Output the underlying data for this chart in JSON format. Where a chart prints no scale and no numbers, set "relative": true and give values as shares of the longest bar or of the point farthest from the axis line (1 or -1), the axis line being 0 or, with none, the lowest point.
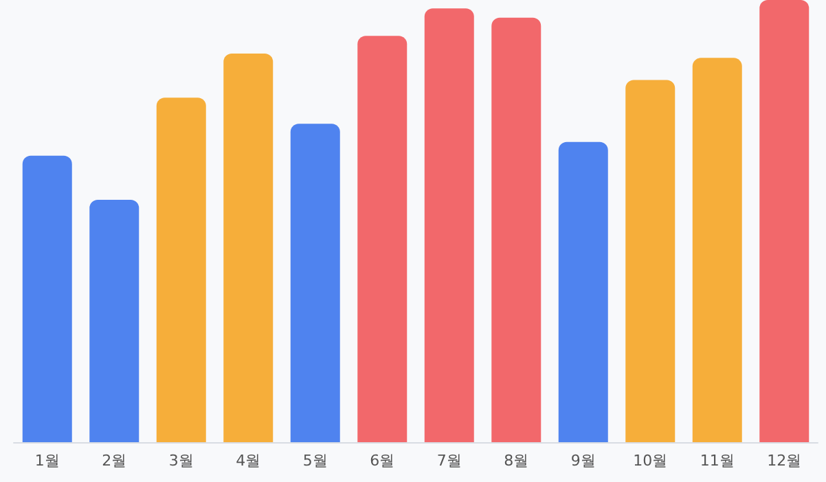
{
  "chart_data": {
    "type": "bar",
    "categories": [
      "1월",
      "2월",
      "3월",
      "4월",
      "5월",
      "6월",
      "7월",
      "8월",
      "9월",
      "10월",
      "11월",
      "12월"
    ],
    "values": [
      0.648,
      0.548,
      0.779,
      0.879,
      0.72,
      0.919,
      0.981,
      0.96,
      0.679,
      0.819,
      0.869,
      1
    ],
    "colors": [
      "#4f83ef",
      "#4f83ef",
      "#f6ae3a",
      "#f6ae3a",
      "#4f83ef",
      "#f2686b",
      "#f2686b",
      "#f2686b",
      "#4f83ef",
      "#f6ae3a",
      "#f6ae3a",
      "#f2686b"
    ],
    "relative": true
  }
}
